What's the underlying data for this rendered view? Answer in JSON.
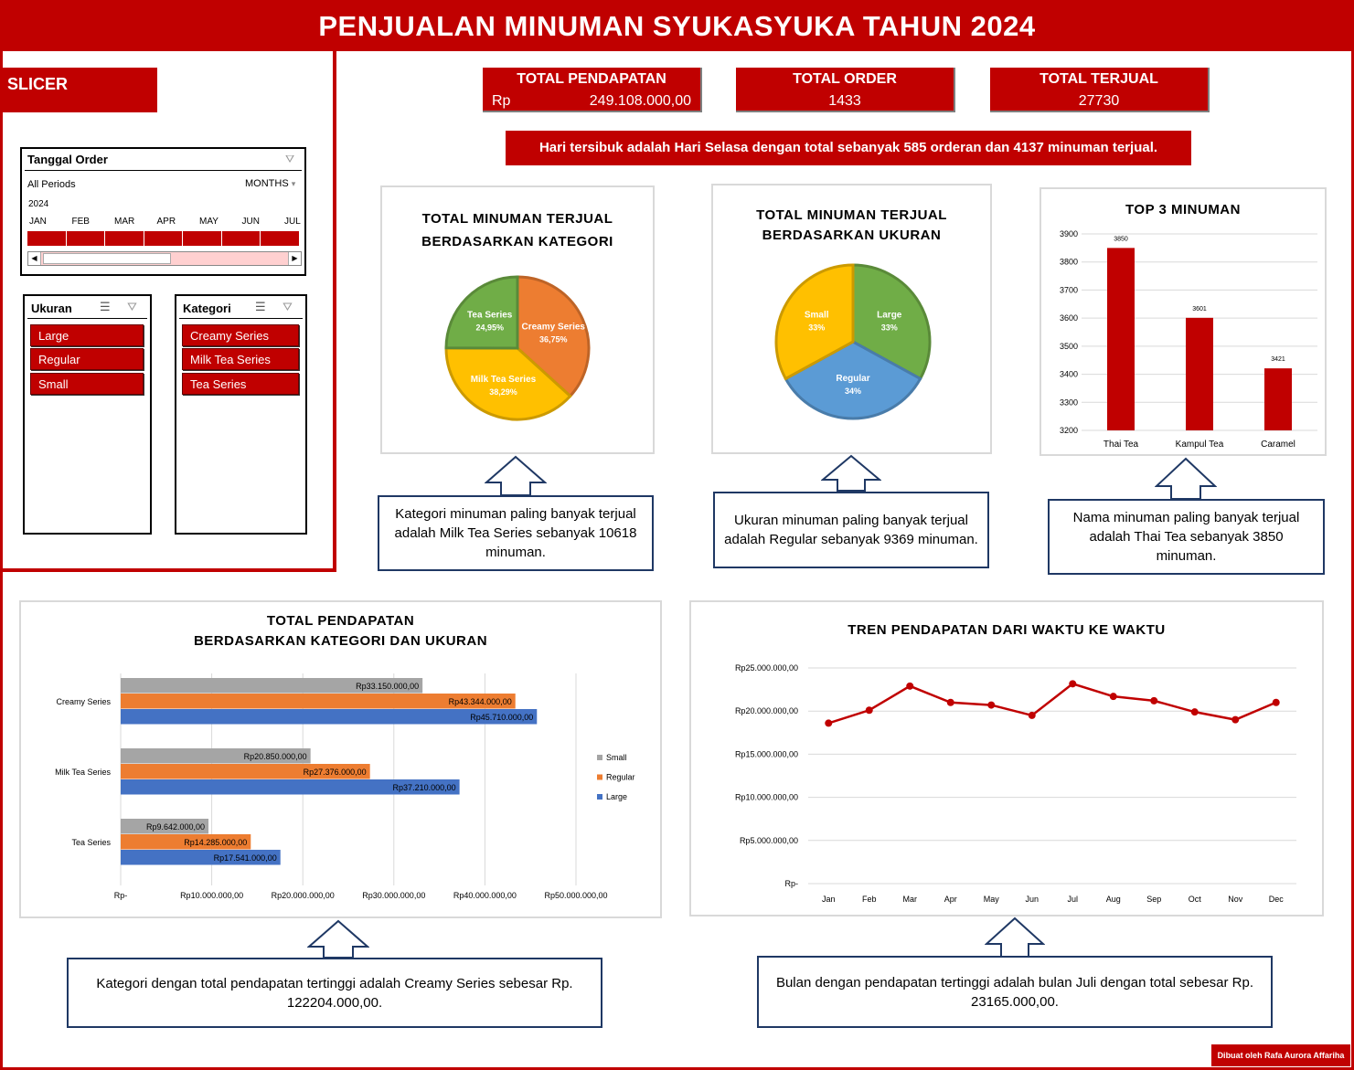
{
  "title": "PENJUALAN MINUMAN SYUKASYUKA TAHUN 2024",
  "slicer": {
    "header": "SLICER",
    "date": {
      "title": "Tanggal Order",
      "all_periods": "All Periods",
      "months_label": "MONTHS",
      "year": "2024",
      "months": [
        "JAN",
        "FEB",
        "MAR",
        "APR",
        "MAY",
        "JUN",
        "JUL"
      ]
    },
    "ukuran": {
      "title": "Ukuran",
      "items": [
        "Large",
        "Regular",
        "Small"
      ]
    },
    "kategori": {
      "title": "Kategori",
      "items": [
        "Creamy Series",
        "Milk Tea Series",
        "Tea Series"
      ]
    }
  },
  "kpis": [
    {
      "label": "TOTAL PENDAPATAN",
      "prefix": "Rp",
      "value": "249.108.000,00"
    },
    {
      "label": "TOTAL ORDER",
      "value": "1433"
    },
    {
      "label": "TOTAL TERJUAL",
      "value": "27730"
    }
  ],
  "banner": "Hari tersibuk adalah Hari Selasa dengan total sebanyak 585 orderan dan 4137 minuman terjual.",
  "notes": {
    "kategori": "Kategori minuman paling banyak terjual adalah Milk Tea Series sebanyak 10618 minuman.",
    "ukuran": "Ukuran minuman paling banyak terjual adalah Regular sebanyak 9369 minuman.",
    "top3": "Nama minuman paling banyak terjual adalah Thai Tea sebanyak 3850 minuman.",
    "pendapatan": "Kategori dengan total pendapatan tertinggi adalah Creamy Series sebesar Rp. 122204.000,00.",
    "tren": "Bulan dengan pendapatan tertinggi adalah bulan Juli dengan total sebesar Rp. 23165.000,00."
  },
  "credit": "Dibuat oleh Rafa Aurora Affariha",
  "colors": {
    "red": "#c00000",
    "green": "#70ad47",
    "orange": "#ed7d31",
    "yellow": "#ffc000",
    "blue": "#5b9bd5",
    "gray": "#a5a5a5",
    "bar_blue": "#4472c4"
  },
  "chart_data": [
    {
      "id": "pie-kategori",
      "type": "pie",
      "title_lines": [
        "TOTAL MINUMAN TERJUAL",
        "BERDASARKAN KATEGORI"
      ],
      "slices": [
        {
          "label": "Creamy Series",
          "value": 36.75,
          "text": "36,75%",
          "color": "#ed7d31"
        },
        {
          "label": "Milk Tea Series",
          "value": 38.29,
          "text": "38,29%",
          "color": "#ffc000"
        },
        {
          "label": "Tea Series",
          "value": 24.95,
          "text": "24,95%",
          "color": "#70ad47"
        }
      ]
    },
    {
      "id": "pie-ukuran",
      "type": "pie",
      "title_lines": [
        "TOTAL MINUMAN TERJUAL",
        "BERDASARKAN UKURAN"
      ],
      "slices": [
        {
          "label": "Large",
          "value": 33,
          "text": "33%",
          "color": "#70ad47"
        },
        {
          "label": "Regular",
          "value": 34,
          "text": "34%",
          "color": "#5b9bd5"
        },
        {
          "label": "Small",
          "value": 33,
          "text": "33%",
          "color": "#ffc000"
        }
      ]
    },
    {
      "id": "bar-top3",
      "type": "bar",
      "title": "TOP 3 MINUMAN",
      "categories": [
        "Thai Tea",
        "Kampul Tea",
        "Caramel"
      ],
      "values": [
        3850,
        3601,
        3421
      ],
      "ylim": [
        3200,
        3900
      ],
      "yticks": [
        3200,
        3300,
        3400,
        3500,
        3600,
        3700,
        3800,
        3900
      ]
    },
    {
      "id": "hbar-pendapatan",
      "type": "bar",
      "orientation": "horizontal",
      "title_lines": [
        "TOTAL PENDAPATAN",
        "BERDASARKAN KATEGORI DAN UKURAN"
      ],
      "categories": [
        "Creamy Series",
        "Milk Tea Series",
        "Tea Series"
      ],
      "series": [
        {
          "name": "Small",
          "color": "#a5a5a5",
          "values": [
            33150000,
            20850000,
            9642000
          ],
          "labels": [
            "Rp33.150.000,00",
            "Rp20.850.000,00",
            "Rp9.642.000,00"
          ]
        },
        {
          "name": "Regular",
          "color": "#ed7d31",
          "values": [
            43344000,
            27376000,
            14285000
          ],
          "labels": [
            "Rp43.344.000,00",
            "Rp27.376.000,00",
            "Rp14.285.000,00"
          ]
        },
        {
          "name": "Large",
          "color": "#4472c4",
          "values": [
            45710000,
            37210000,
            17541000
          ],
          "labels": [
            "Rp45.710.000,00",
            "Rp37.210.000,00",
            "Rp17.541.000,00"
          ]
        }
      ],
      "xlim": [
        0,
        50000000
      ],
      "xtick_labels": [
        "Rp-",
        "Rp10.000.000,00",
        "Rp20.000.000,00",
        "Rp30.000.000,00",
        "Rp40.000.000,00",
        "Rp50.000.000,00"
      ],
      "legend": "right"
    },
    {
      "id": "line-tren",
      "type": "line",
      "title": "TREN PENDAPATAN DARI WAKTU KE WAKTU",
      "x": [
        "Jan",
        "Feb",
        "Mar",
        "Apr",
        "May",
        "Jun",
        "Jul",
        "Aug",
        "Sep",
        "Oct",
        "Nov",
        "Dec"
      ],
      "values": [
        18600000,
        20100000,
        22900000,
        21000000,
        20700000,
        19500000,
        23165000,
        21700000,
        21200000,
        19900000,
        19000000,
        21000000
      ],
      "ylim": [
        0,
        25000000
      ],
      "ytick_labels": [
        "Rp-",
        "Rp5.000.000,00",
        "Rp10.000.000,00",
        "Rp15.000.000,00",
        "Rp20.000.000,00",
        "Rp25.000.000,00"
      ],
      "color": "#c00000"
    }
  ]
}
